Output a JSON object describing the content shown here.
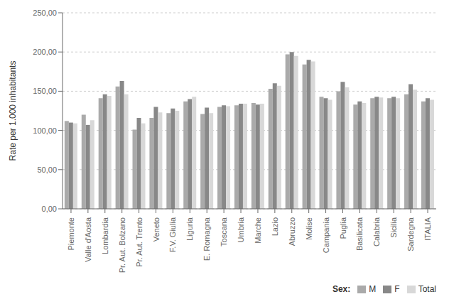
{
  "chart_data": {
    "type": "bar",
    "categories": [
      "Piemonte",
      "Valle d'Aosta",
      "Lombardia",
      "Pr. Aut. Bolzano",
      "Pr. Aut. Trento",
      "Veneto",
      "F.V. Giulia",
      "Liguria",
      "E. Romagna",
      "Toscana",
      "Umbria",
      "Marche",
      "Lazio",
      "Abruzzo",
      "Molise",
      "Campania",
      "Puglia",
      "Basilicata",
      "Calabria",
      "Sicilia",
      "Sardegna",
      "ITALIA"
    ],
    "series": [
      {
        "name": "M",
        "color": "#aaaaaa",
        "values": [
          112,
          120,
          141,
          156,
          101,
          116,
          122,
          137,
          121,
          130,
          132,
          135,
          153,
          197,
          184,
          143,
          150,
          133,
          141,
          141,
          146,
          137
        ]
      },
      {
        "name": "F",
        "color": "#888888",
        "values": [
          110,
          107,
          146,
          163,
          116,
          130,
          128,
          140,
          129,
          132,
          134,
          133,
          160,
          200,
          190,
          141,
          162,
          137,
          143,
          143,
          159,
          141
        ]
      },
      {
        "name": "Total",
        "color": "#d8d8d8",
        "values": [
          109,
          113,
          144,
          146,
          109,
          123,
          125,
          143,
          122,
          131,
          134,
          134,
          157,
          195,
          188,
          139,
          155,
          135,
          142,
          141,
          152,
          139
        ]
      }
    ],
    "y_label": "Rate per 1.000 inhabitants",
    "ylim": [
      0,
      250
    ],
    "yticks": [
      {
        "value": 0,
        "label": "0,00"
      },
      {
        "value": 50,
        "label": "50,00"
      },
      {
        "value": 100,
        "label": "100,00"
      },
      {
        "value": 150,
        "label": "150,00"
      },
      {
        "value": 200,
        "label": "200,00"
      },
      {
        "value": 250,
        "label": "250,00"
      }
    ],
    "grid": true,
    "legend": "lower right",
    "legend_title": "Sex:"
  }
}
